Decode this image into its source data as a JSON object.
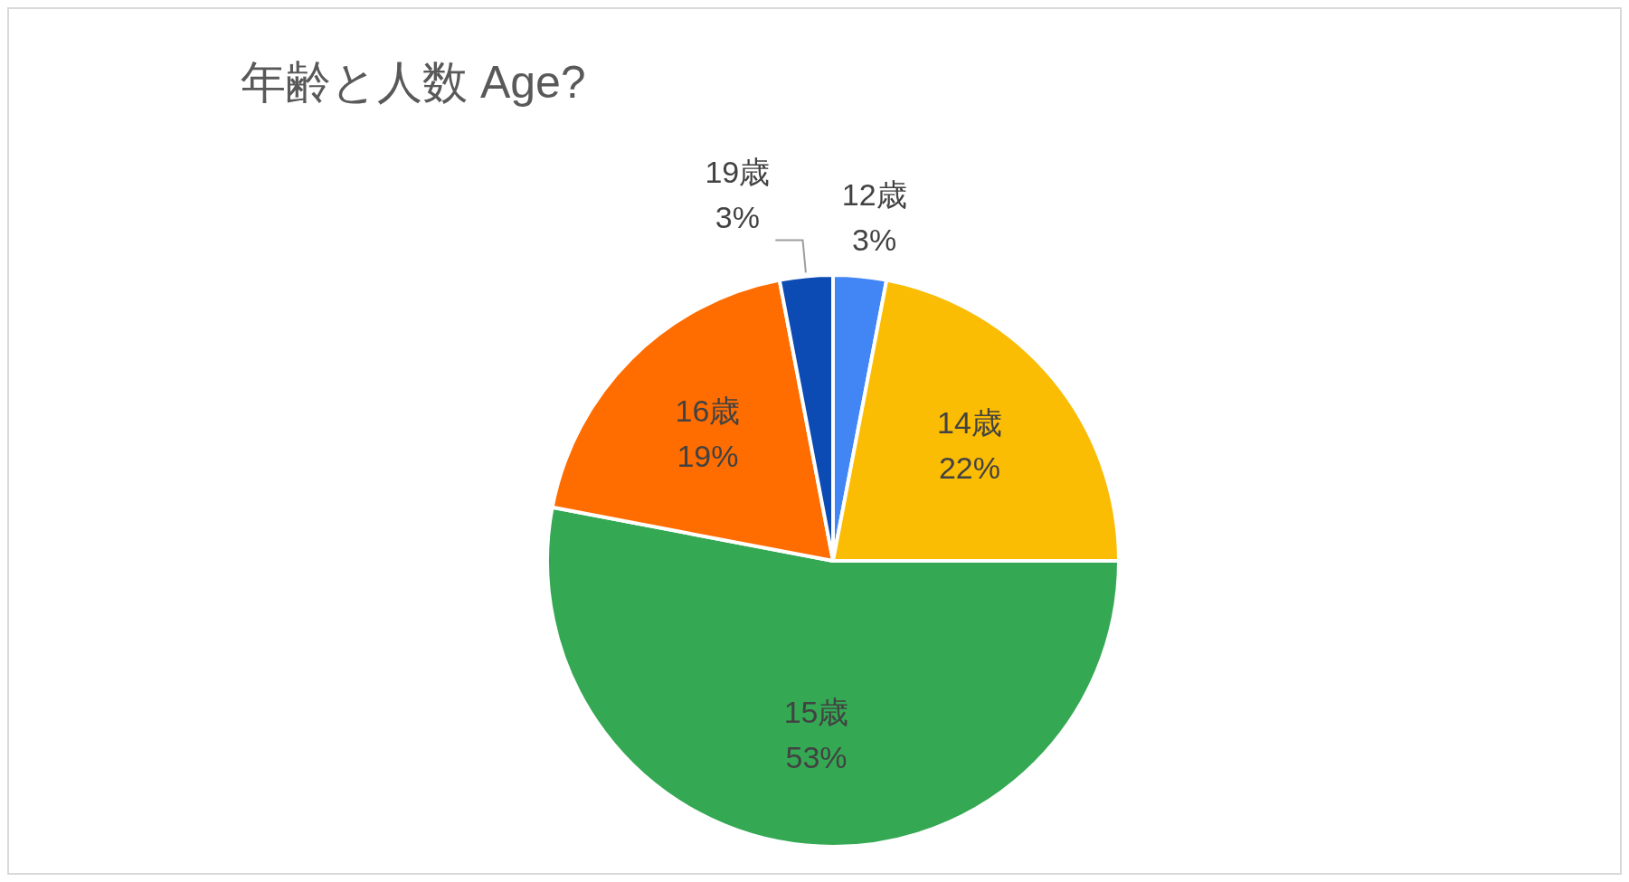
{
  "chart_data": {
    "type": "pie",
    "title": "年齢と人数 Age?",
    "categories": [
      "12歳",
      "14歳",
      "15歳",
      "16歳",
      "19歳"
    ],
    "values": [
      3,
      22,
      53,
      19,
      3
    ],
    "value_labels": [
      "3%",
      "22%",
      "53%",
      "19%",
      "3%"
    ],
    "colors": [
      "#4285f4",
      "#fbbc04",
      "#34a853",
      "#ff6d01",
      "#0b4bb3"
    ],
    "legend": false
  }
}
